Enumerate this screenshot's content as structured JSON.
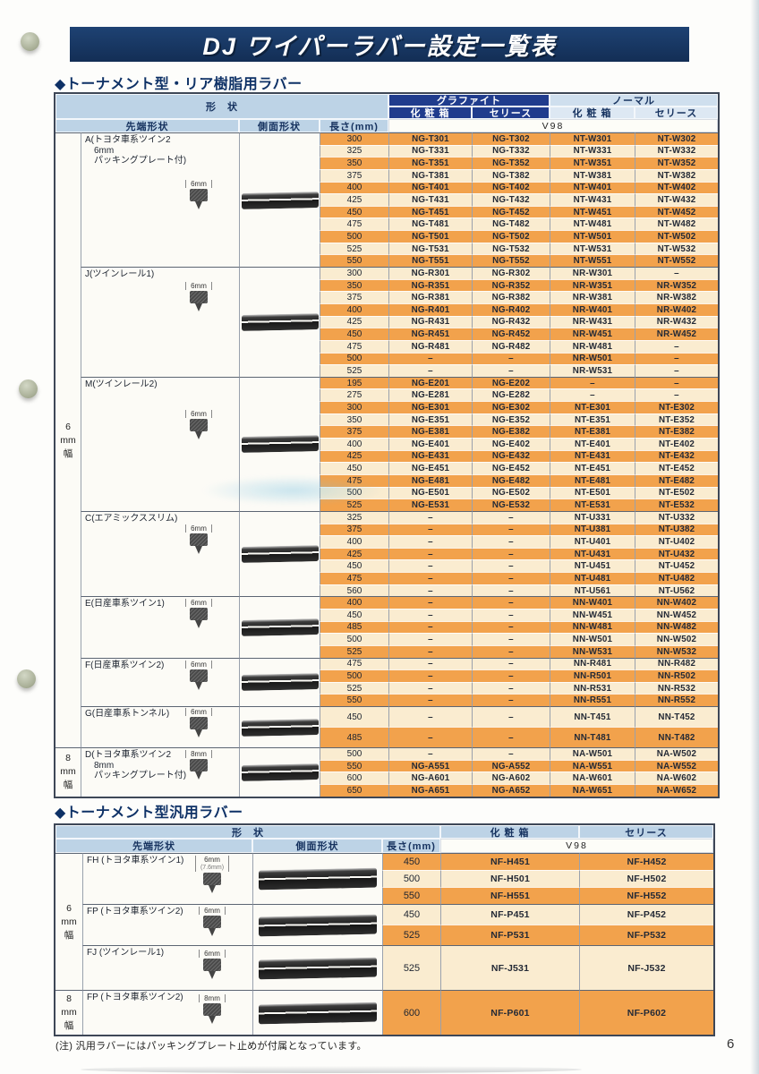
{
  "page": {
    "title": "DJ ワイパーラバー設定一覧表",
    "page_number": "6",
    "footnote": "(注) 汎用ラバーにはパッキングプレート止めが付属となっています。",
    "colors": {
      "title_bar": "#183a66",
      "header_navy": "#203c8d",
      "header_blue": "#bdd3e6",
      "row_orange": "#f2a24c",
      "row_cream": "#faecd0",
      "section_text": "#0e3166"
    }
  },
  "table1": {
    "section_title": "◆トーナメント型・リア樹脂用ラバー",
    "headers": {
      "shape": "形　状",
      "graphite": "グラファイト",
      "normal": "ノーマル",
      "box": "化 粧 箱",
      "series": "セリース",
      "tip": "先端形状",
      "side": "側面形状",
      "length": "長さ(mm)",
      "model": "V98"
    },
    "bands": [
      {
        "label": "6mm幅",
        "group_ids": [
          "A",
          "J",
          "M",
          "C",
          "E",
          "F",
          "G"
        ]
      },
      {
        "label": "8mm幅",
        "group_ids": [
          "D"
        ]
      }
    ],
    "groups": [
      {
        "id": "A",
        "label_lines": [
          "A(トヨタ車系ツイン2",
          "6mm",
          "パッキングプレート付)"
        ],
        "tip_dim": "6mm",
        "rows": [
          [
            "300",
            "NG-T301",
            "NG-T302",
            "NT-W301",
            "NT-W302"
          ],
          [
            "325",
            "NG-T331",
            "NG-T332",
            "NT-W331",
            "NT-W332"
          ],
          [
            "350",
            "NG-T351",
            "NG-T352",
            "NT-W351",
            "NT-W352"
          ],
          [
            "375",
            "NG-T381",
            "NG-T382",
            "NT-W381",
            "NT-W382"
          ],
          [
            "400",
            "NG-T401",
            "NG-T402",
            "NT-W401",
            "NT-W402"
          ],
          [
            "425",
            "NG-T431",
            "NG-T432",
            "NT-W431",
            "NT-W432"
          ],
          [
            "450",
            "NG-T451",
            "NG-T452",
            "NT-W451",
            "NT-W452"
          ],
          [
            "475",
            "NG-T481",
            "NG-T482",
            "NT-W481",
            "NT-W482"
          ],
          [
            "500",
            "NG-T501",
            "NG-T502",
            "NT-W501",
            "NT-W502"
          ],
          [
            "525",
            "NG-T531",
            "NG-T532",
            "NT-W531",
            "NT-W532"
          ],
          [
            "550",
            "NG-T551",
            "NG-T552",
            "NT-W551",
            "NT-W552"
          ]
        ]
      },
      {
        "id": "J",
        "label_lines": [
          "J(ツインレール1)"
        ],
        "tip_dim": "6mm",
        "rows": [
          [
            "300",
            "NG-R301",
            "NG-R302",
            "NR-W301",
            "–"
          ],
          [
            "350",
            "NG-R351",
            "NG-R352",
            "NR-W351",
            "NR-W352"
          ],
          [
            "375",
            "NG-R381",
            "NG-R382",
            "NR-W381",
            "NR-W382"
          ],
          [
            "400",
            "NG-R401",
            "NG-R402",
            "NR-W401",
            "NR-W402"
          ],
          [
            "425",
            "NG-R431",
            "NG-R432",
            "NR-W431",
            "NR-W432"
          ],
          [
            "450",
            "NG-R451",
            "NG-R452",
            "NR-W451",
            "NR-W452"
          ],
          [
            "475",
            "NG-R481",
            "NG-R482",
            "NR-W481",
            "–"
          ],
          [
            "500",
            "–",
            "–",
            "NR-W501",
            "–"
          ],
          [
            "525",
            "–",
            "–",
            "NR-W531",
            "–"
          ]
        ]
      },
      {
        "id": "M",
        "label_lines": [
          "M(ツインレール2)"
        ],
        "tip_dim": "6mm",
        "rows": [
          [
            "195",
            "NG-E201",
            "NG-E202",
            "–",
            "–"
          ],
          [
            "275",
            "NG-E281",
            "NG-E282",
            "–",
            "–"
          ],
          [
            "300",
            "NG-E301",
            "NG-E302",
            "NT-E301",
            "NT-E302"
          ],
          [
            "350",
            "NG-E351",
            "NG-E352",
            "NT-E351",
            "NT-E352"
          ],
          [
            "375",
            "NG-E381",
            "NG-E382",
            "NT-E381",
            "NT-E382"
          ],
          [
            "400",
            "NG-E401",
            "NG-E402",
            "NT-E401",
            "NT-E402"
          ],
          [
            "425",
            "NG-E431",
            "NG-E432",
            "NT-E431",
            "NT-E432"
          ],
          [
            "450",
            "NG-E451",
            "NG-E452",
            "NT-E451",
            "NT-E452"
          ],
          [
            "475",
            "NG-E481",
            "NG-E482",
            "NT-E481",
            "NT-E482"
          ],
          [
            "500",
            "NG-E501",
            "NG-E502",
            "NT-E501",
            "NT-E502"
          ],
          [
            "525",
            "NG-E531",
            "NG-E532",
            "NT-E531",
            "NT-E532"
          ]
        ]
      },
      {
        "id": "C",
        "label_lines": [
          "C(エアミックススリム)"
        ],
        "tip_dim": "6mm",
        "rows": [
          [
            "325",
            "–",
            "–",
            "NT-U331",
            "NT-U332"
          ],
          [
            "375",
            "–",
            "–",
            "NT-U381",
            "NT-U382"
          ],
          [
            "400",
            "–",
            "–",
            "NT-U401",
            "NT-U402"
          ],
          [
            "425",
            "–",
            "–",
            "NT-U431",
            "NT-U432"
          ],
          [
            "450",
            "–",
            "–",
            "NT-U451",
            "NT-U452"
          ],
          [
            "475",
            "–",
            "–",
            "NT-U481",
            "NT-U482"
          ],
          [
            "560",
            "–",
            "–",
            "NT-U561",
            "NT-U562"
          ]
        ]
      },
      {
        "id": "E",
        "label_lines": [
          "E(日産車系ツイン1)"
        ],
        "tip_dim": "6mm",
        "rows": [
          [
            "400",
            "–",
            "–",
            "NN-W401",
            "NN-W402"
          ],
          [
            "450",
            "–",
            "–",
            "NN-W451",
            "NN-W452"
          ],
          [
            "485",
            "–",
            "–",
            "NN-W481",
            "NN-W482"
          ],
          [
            "500",
            "–",
            "–",
            "NN-W501",
            "NN-W502"
          ],
          [
            "525",
            "–",
            "–",
            "NN-W531",
            "NN-W532"
          ]
        ]
      },
      {
        "id": "F",
        "label_lines": [
          "F(日産車系ツイン2)"
        ],
        "tip_dim": "6mm",
        "rows": [
          [
            "475",
            "–",
            "–",
            "NN-R481",
            "NN-R482"
          ],
          [
            "500",
            "–",
            "–",
            "NN-R501",
            "NN-R502"
          ],
          [
            "525",
            "–",
            "–",
            "NN-R531",
            "NN-R532"
          ],
          [
            "550",
            "–",
            "–",
            "NN-R551",
            "NN-R552"
          ]
        ]
      },
      {
        "id": "G",
        "label_lines": [
          "G(日産車系トンネル)"
        ],
        "tip_dim": "6mm",
        "tall": true,
        "rows": [
          [
            "450",
            "–",
            "–",
            "NN-T451",
            "NN-T452"
          ],
          [
            "485",
            "–",
            "–",
            "NN-T481",
            "NN-T482"
          ]
        ]
      },
      {
        "id": "D",
        "label_lines": [
          "D(トヨタ車系ツイン2",
          "8mm",
          "パッキングプレート付)"
        ],
        "tip_dim": "8mm",
        "rows": [
          [
            "500",
            "–",
            "–",
            "NA-W501",
            "NA-W502"
          ],
          [
            "550",
            "NG-A551",
            "NG-A552",
            "NA-W551",
            "NA-W552"
          ],
          [
            "600",
            "NG-A601",
            "NG-A602",
            "NA-W601",
            "NA-W602"
          ],
          [
            "650",
            "NG-A651",
            "NG-A652",
            "NA-W651",
            "NA-W652"
          ]
        ]
      }
    ]
  },
  "table2": {
    "section_title": "◆トーナメント型汎用ラバー",
    "headers": {
      "shape": "形　状",
      "box": "化 粧 箱",
      "series": "セリース",
      "tip": "先端形状",
      "side": "側面形状",
      "length": "長さ(mm)",
      "model": "V98"
    },
    "bands": [
      {
        "label": "6mm幅",
        "group_ids": [
          "FH",
          "FP6",
          "FJ"
        ]
      },
      {
        "label": "8mm幅",
        "group_ids": [
          "FP8"
        ]
      }
    ],
    "groups": [
      {
        "id": "FH",
        "label_lines": [
          "FH (トヨタ車系ツイン1)"
        ],
        "tip_dim": "6mm",
        "tip_dim_sub": "(7.6mm)",
        "rows": [
          [
            "450",
            "NF-H451",
            "NF-H452"
          ],
          [
            "500",
            "NF-H501",
            "NF-H502"
          ],
          [
            "550",
            "NF-H551",
            "NF-H552"
          ]
        ]
      },
      {
        "id": "FP6",
        "label_lines": [
          "FP (トヨタ車系ツイン2)"
        ],
        "tip_dim": "6mm",
        "rows": [
          [
            "450",
            "NF-P451",
            "NF-P452"
          ],
          [
            "525",
            "NF-P531",
            "NF-P532"
          ]
        ]
      },
      {
        "id": "FJ",
        "label_lines": [
          "FJ (ツインレール1)"
        ],
        "tip_dim": "6mm",
        "rows": [
          [
            "525",
            "NF-J531",
            "NF-J532"
          ]
        ]
      },
      {
        "id": "FP8",
        "label_lines": [
          "FP (トヨタ車系ツイン2)"
        ],
        "tip_dim": "8mm",
        "rows": [
          [
            "600",
            "NF-P601",
            "NF-P602"
          ]
        ]
      }
    ]
  }
}
